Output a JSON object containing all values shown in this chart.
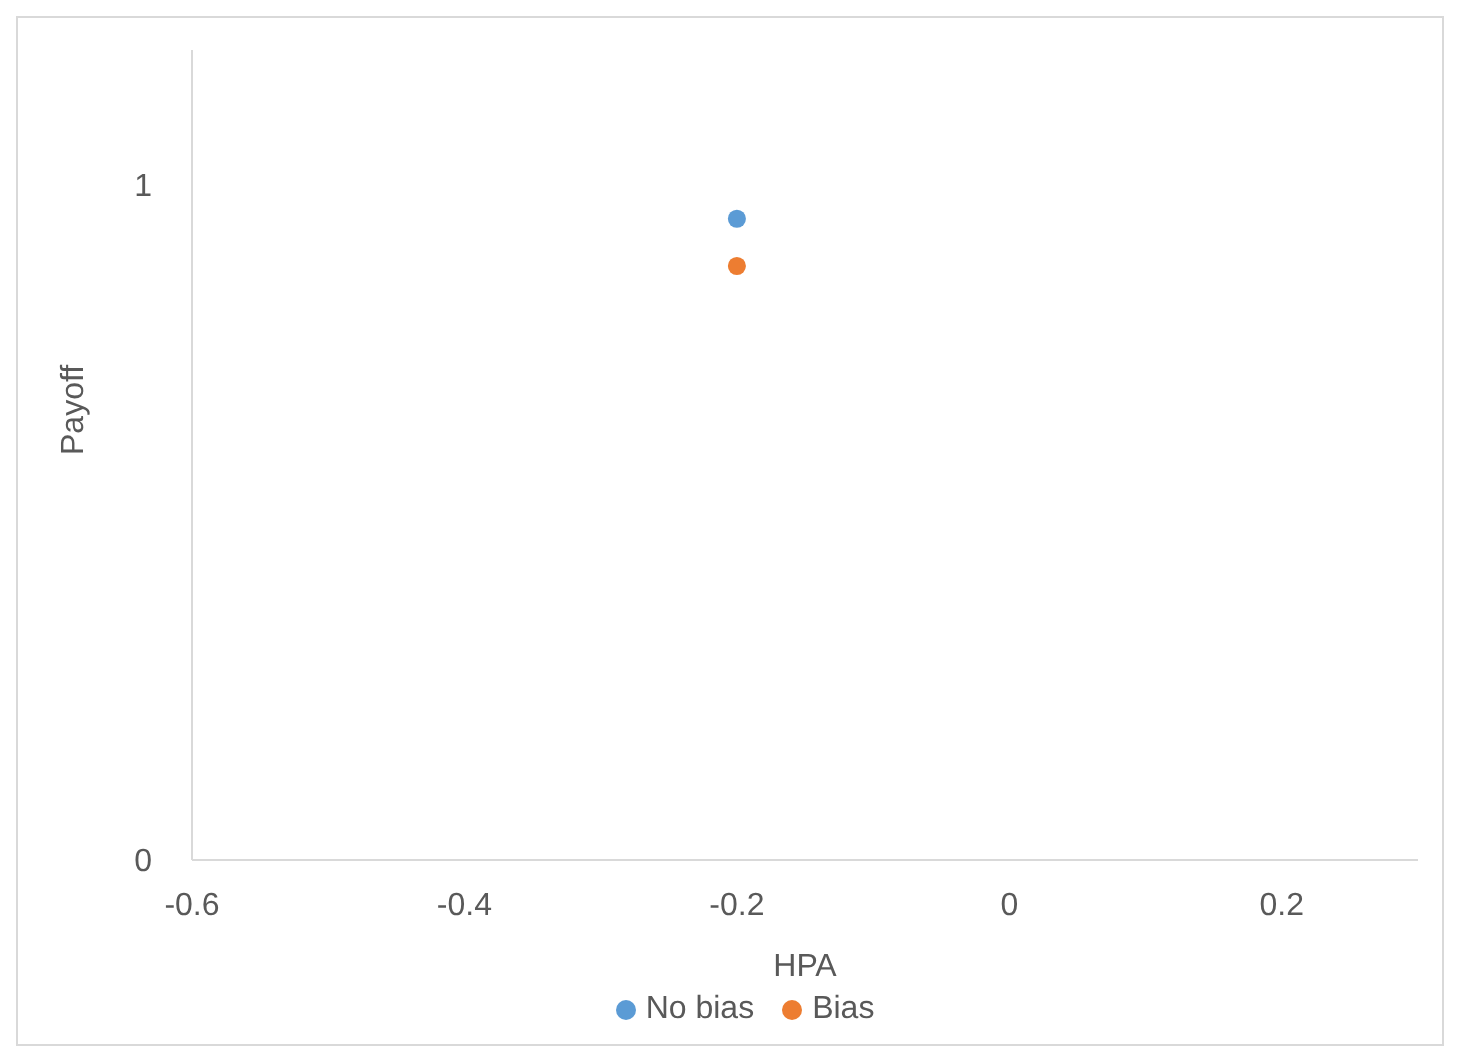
{
  "chart_data": {
    "type": "scatter",
    "xlabel": "HPA",
    "ylabel": "Payoff",
    "xlim": [
      -0.6,
      0.3
    ],
    "xticks": [
      -0.6,
      -0.4,
      -0.2,
      0,
      0.2
    ],
    "ylim": [
      0,
      1.2
    ],
    "yticks": [
      0,
      1
    ],
    "legend": "bottom",
    "marker": "circle",
    "series": [
      {
        "name": "No bias",
        "color": "#5b9bd5",
        "x": [
          -0.2
        ],
        "values": [
          0.95
        ]
      },
      {
        "name": "Bias",
        "color": "#ed7d31",
        "x": [
          -0.2
        ],
        "values": [
          0.88
        ]
      }
    ]
  }
}
